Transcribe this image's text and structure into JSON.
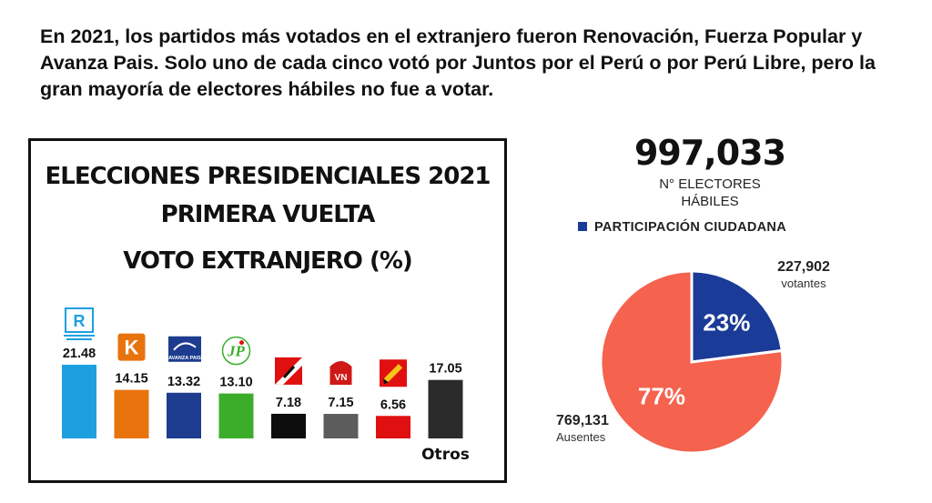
{
  "headline": "En 2021, los partidos más votados en el extranjero fueron Renovación, Fuerza Popular y Avanza Pais. Solo uno de cada cinco votó por Juntos por el Perú o por Perú Libre, pero la gran mayoría de electores hábiles no fue a votar.",
  "colors": {
    "renovacion": "#1e9fe0",
    "fuerza": "#e8730d",
    "avanza": "#1d3c8f",
    "juntos": "#3aae2a",
    "peru_libre": "#0d0d0d",
    "victoria": "#5c5c5c",
    "podemos": "#e01010",
    "otros": "#2b2b2b",
    "votantes": "#1a3b97",
    "ausentes": "#f5624e"
  },
  "chart_data": [
    {
      "type": "bar",
      "title": [
        "ELECCIONES PRESIDENCIALES 2021",
        "PRIMERA VUELTA",
        "VOTO EXTRANJERO (%)"
      ],
      "categories": [
        "Renovación Popular",
        "Fuerza Popular",
        "Avanza País",
        "Juntos por el Perú",
        "Perú Libre",
        "Victoria Nacional",
        "Podemos Perú",
        "Otros"
      ],
      "category_labels": [
        "",
        "",
        "",
        "",
        "",
        "",
        "",
        "Otros"
      ],
      "icons": [
        "renovacion-popular-logo-icon",
        "fuerza-popular-logo-icon",
        "avanza-pais-logo-icon",
        "juntos-por-el-peru-logo-icon",
        "peru-libre-logo-icon",
        "victoria-nacional-logo-icon",
        "podemos-peru-logo-icon",
        ""
      ],
      "values": [
        21.48,
        14.15,
        13.32,
        13.1,
        7.18,
        7.15,
        6.56,
        17.05
      ],
      "value_labels": [
        "21.48",
        "14.15",
        "13.32",
        "13.10",
        "7.18",
        "7.15",
        "6.56",
        "17.05"
      ],
      "bar_colors": [
        "#1e9fe0",
        "#e8730d",
        "#1d3c8f",
        "#3aae2a",
        "#0d0d0d",
        "#5c5c5c",
        "#e01010",
        "#2b2b2b"
      ],
      "ylim": [
        0,
        21.48
      ],
      "grid": false
    },
    {
      "type": "pie",
      "title": "997,033",
      "subtitle": "N° ELECTORES HÁBILES",
      "legend": "PARTICIPACIÓN CIUDADANA",
      "slices": [
        {
          "label": "votantes",
          "count": "227,902",
          "value": 23,
          "pct_label": "23%",
          "color": "#1a3b97"
        },
        {
          "label": "Ausentes",
          "count": "769,131",
          "value": 77,
          "pct_label": "77%",
          "color": "#f5624e"
        }
      ]
    }
  ],
  "logo_texts": {
    "renovacion": "R",
    "fuerza": "K",
    "avanza": "AVANZA PAIS",
    "juntos": "JP",
    "victoria": "VN"
  },
  "subtitle_lines": [
    "N° ELECTORES",
    "HÁBILES"
  ]
}
